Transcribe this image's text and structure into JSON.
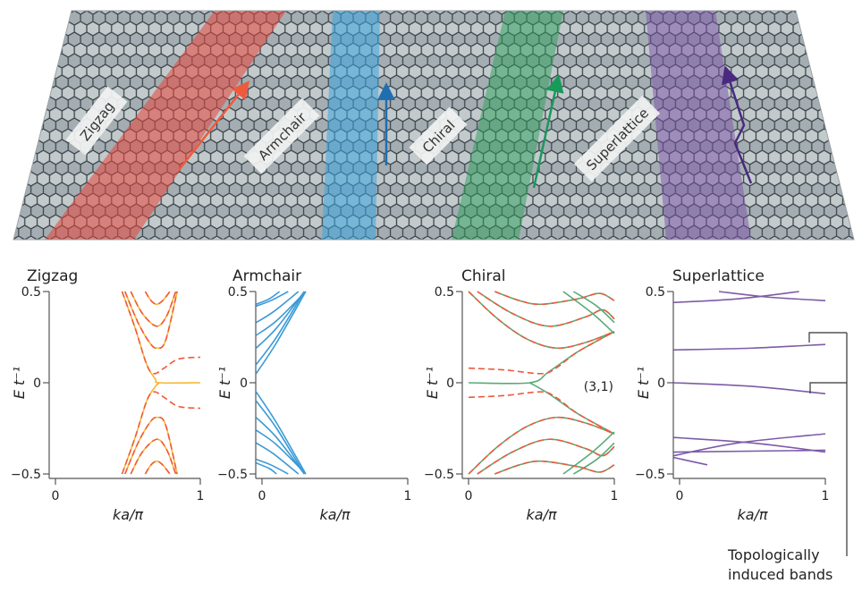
{
  "diagram": {
    "labels": [
      "Zigzag",
      "Armchair",
      "Chiral",
      "Superlattice"
    ],
    "colors": {
      "zigzag": "#e8463a",
      "armchair": "#3aa6e0",
      "chiral": "#2aa05a",
      "superlattice": "#7a4fa8"
    }
  },
  "annotation": {
    "line1": "Topologically",
    "line2": "induced bands"
  },
  "chart_data": [
    {
      "type": "line",
      "title": "Zigzag",
      "xlabel": "ka/π",
      "ylabel": "E t⁻¹",
      "xlim": [
        0,
        1
      ],
      "ylim": [
        -0.5,
        0.5
      ],
      "xticks": [
        "0",
        "1"
      ],
      "yticks": [
        "0.5",
        "0",
        "−0.5"
      ],
      "colors": {
        "solid": "#f7b733",
        "dashed": "#ef5a3c"
      },
      "solid": [
        [
          [
            0.62,
            0.5
          ],
          [
            0.66,
            0.45
          ],
          [
            0.7,
            0.43
          ],
          [
            0.74,
            0.45
          ],
          [
            0.79,
            0.5
          ]
        ],
        [
          [
            0.52,
            0.5
          ],
          [
            0.6,
            0.38
          ],
          [
            0.7,
            0.31
          ],
          [
            0.77,
            0.37
          ],
          [
            0.83,
            0.5
          ]
        ],
        [
          [
            0.48,
            0.5
          ],
          [
            0.57,
            0.33
          ],
          [
            0.65,
            0.22
          ],
          [
            0.7,
            0.19
          ],
          [
            0.76,
            0.23
          ],
          [
            0.84,
            0.5
          ]
        ],
        [
          [
            0.46,
            0.5
          ],
          [
            0.55,
            0.3
          ],
          [
            0.63,
            0.1
          ],
          [
            0.69,
            0.02
          ],
          [
            0.72,
            0
          ],
          [
            1,
            0
          ]
        ],
        [
          [
            0.62,
            -0.5
          ],
          [
            0.66,
            -0.45
          ],
          [
            0.7,
            -0.43
          ],
          [
            0.74,
            -0.45
          ],
          [
            0.79,
            -0.5
          ]
        ],
        [
          [
            0.52,
            -0.5
          ],
          [
            0.6,
            -0.38
          ],
          [
            0.7,
            -0.31
          ],
          [
            0.77,
            -0.37
          ],
          [
            0.83,
            -0.5
          ]
        ],
        [
          [
            0.48,
            -0.5
          ],
          [
            0.57,
            -0.33
          ],
          [
            0.65,
            -0.22
          ],
          [
            0.7,
            -0.19
          ],
          [
            0.76,
            -0.23
          ],
          [
            0.84,
            -0.5
          ]
        ],
        [
          [
            0.46,
            -0.5
          ],
          [
            0.55,
            -0.3
          ],
          [
            0.63,
            -0.1
          ],
          [
            0.69,
            -0.02
          ],
          [
            0.72,
            0
          ]
        ]
      ],
      "dashed": [
        [
          [
            0.62,
            0.5
          ],
          [
            0.66,
            0.45
          ],
          [
            0.7,
            0.43
          ],
          [
            0.74,
            0.45
          ],
          [
            0.79,
            0.5
          ]
        ],
        [
          [
            0.52,
            0.5
          ],
          [
            0.6,
            0.38
          ],
          [
            0.7,
            0.31
          ],
          [
            0.77,
            0.37
          ],
          [
            0.83,
            0.5
          ]
        ],
        [
          [
            0.48,
            0.5
          ],
          [
            0.57,
            0.33
          ],
          [
            0.65,
            0.22
          ],
          [
            0.7,
            0.19
          ],
          [
            0.76,
            0.23
          ],
          [
            0.84,
            0.5
          ]
        ],
        [
          [
            0.46,
            0.5
          ],
          [
            0.55,
            0.3
          ],
          [
            0.63,
            0.1
          ],
          [
            0.68,
            0.05
          ],
          [
            0.75,
            0.08
          ],
          [
            0.85,
            0.13
          ],
          [
            1,
            0.14
          ]
        ],
        [
          [
            0.62,
            -0.5
          ],
          [
            0.66,
            -0.45
          ],
          [
            0.7,
            -0.43
          ],
          [
            0.74,
            -0.45
          ],
          [
            0.79,
            -0.5
          ]
        ],
        [
          [
            0.52,
            -0.5
          ],
          [
            0.6,
            -0.38
          ],
          [
            0.7,
            -0.31
          ],
          [
            0.77,
            -0.37
          ],
          [
            0.83,
            -0.5
          ]
        ],
        [
          [
            0.48,
            -0.5
          ],
          [
            0.57,
            -0.33
          ],
          [
            0.65,
            -0.22
          ],
          [
            0.7,
            -0.19
          ],
          [
            0.76,
            -0.23
          ],
          [
            0.84,
            -0.5
          ]
        ],
        [
          [
            0.46,
            -0.5
          ],
          [
            0.55,
            -0.3
          ],
          [
            0.63,
            -0.1
          ],
          [
            0.68,
            -0.05
          ],
          [
            0.75,
            -0.08
          ],
          [
            0.85,
            -0.13
          ],
          [
            1,
            -0.14
          ]
        ]
      ]
    },
    {
      "type": "line",
      "title": "Armchair",
      "xlabel": "ka/π",
      "ylabel": "E t⁻¹",
      "xlim": [
        0,
        1
      ],
      "ylim": [
        -0.5,
        0.5
      ],
      "xticks": [
        "0",
        "1"
      ],
      "yticks": [
        "0.5",
        "0",
        "−0.5"
      ],
      "colors": {
        "solid": "#3a9ad6"
      },
      "solid": [
        [
          [
            -0.04,
            0.05
          ],
          [
            0.1,
            0.22
          ],
          [
            0.3,
            0.5
          ]
        ],
        [
          [
            -0.04,
            0.1
          ],
          [
            0.1,
            0.25
          ],
          [
            0.29,
            0.5
          ]
        ],
        [
          [
            -0.04,
            0.19
          ],
          [
            0.1,
            0.3
          ],
          [
            0.29,
            0.5
          ]
        ],
        [
          [
            -0.04,
            0.26
          ],
          [
            0.1,
            0.34
          ],
          [
            0.3,
            0.5
          ]
        ],
        [
          [
            -0.04,
            0.33
          ],
          [
            0.08,
            0.39
          ],
          [
            0.25,
            0.5
          ]
        ],
        [
          [
            -0.04,
            0.42
          ],
          [
            0.06,
            0.45
          ],
          [
            0.18,
            0.5
          ]
        ],
        [
          [
            -0.04,
            0.43
          ],
          [
            0.05,
            0.46
          ],
          [
            0.12,
            0.5
          ]
        ],
        [
          [
            -0.04,
            -0.05
          ],
          [
            0.1,
            -0.22
          ],
          [
            0.3,
            -0.5
          ]
        ],
        [
          [
            -0.04,
            -0.1
          ],
          [
            0.1,
            -0.25
          ],
          [
            0.29,
            -0.5
          ]
        ],
        [
          [
            -0.04,
            -0.19
          ],
          [
            0.1,
            -0.3
          ],
          [
            0.29,
            -0.5
          ]
        ],
        [
          [
            -0.04,
            -0.26
          ],
          [
            0.1,
            -0.34
          ],
          [
            0.3,
            -0.5
          ]
        ],
        [
          [
            -0.04,
            -0.33
          ],
          [
            0.08,
            -0.39
          ],
          [
            0.25,
            -0.5
          ]
        ],
        [
          [
            -0.04,
            -0.42
          ],
          [
            0.06,
            -0.45
          ],
          [
            0.18,
            -0.5
          ]
        ],
        [
          [
            -0.04,
            -0.44
          ],
          [
            0.05,
            -0.47
          ],
          [
            0.1,
            -0.5
          ]
        ]
      ],
      "dashed": []
    },
    {
      "type": "line",
      "title": "Chiral",
      "xlabel": "ka/π",
      "ylabel": "E t⁻¹",
      "xlim": [
        0,
        1
      ],
      "ylim": [
        -0.5,
        0.5
      ],
      "xticks": [
        "0",
        "1"
      ],
      "yticks": [
        "0.5",
        "0",
        "−0.5"
      ],
      "annotation": "(3,1)",
      "colors": {
        "solid": "#5aaa78",
        "dashed": "#ef5a3c"
      },
      "solid": [
        [
          [
            0,
            0.5
          ],
          [
            0.2,
            0.35
          ],
          [
            0.4,
            0.24
          ],
          [
            0.6,
            0.19
          ],
          [
            0.8,
            0.22
          ],
          [
            1,
            0.28
          ]
        ],
        [
          [
            0.06,
            0.5
          ],
          [
            0.3,
            0.38
          ],
          [
            0.55,
            0.31
          ],
          [
            0.8,
            0.36
          ],
          [
            0.92,
            0.4
          ],
          [
            1,
            0.35
          ]
        ],
        [
          [
            0.18,
            0.5
          ],
          [
            0.35,
            0.45
          ],
          [
            0.5,
            0.43
          ],
          [
            0.75,
            0.46
          ],
          [
            0.9,
            0.49
          ],
          [
            1,
            0.45
          ]
        ],
        [
          [
            0.65,
            0.5
          ],
          [
            0.85,
            0.38
          ],
          [
            1,
            0.27
          ]
        ],
        [
          [
            0.72,
            0.5
          ],
          [
            0.88,
            0.42
          ],
          [
            1,
            0.33
          ]
        ],
        [
          [
            0,
            0
          ],
          [
            0.42,
            0
          ],
          [
            0.55,
            0.06
          ],
          [
            0.75,
            0.17
          ],
          [
            1,
            0.28
          ]
        ],
        [
          [
            0,
            -0.5
          ],
          [
            0.2,
            -0.35
          ],
          [
            0.4,
            -0.24
          ],
          [
            0.6,
            -0.19
          ],
          [
            0.8,
            -0.22
          ],
          [
            1,
            -0.28
          ]
        ],
        [
          [
            0.06,
            -0.5
          ],
          [
            0.3,
            -0.38
          ],
          [
            0.55,
            -0.31
          ],
          [
            0.8,
            -0.36
          ],
          [
            0.92,
            -0.4
          ],
          [
            1,
            -0.35
          ]
        ],
        [
          [
            0.18,
            -0.5
          ],
          [
            0.35,
            -0.45
          ],
          [
            0.5,
            -0.43
          ],
          [
            0.75,
            -0.46
          ],
          [
            0.9,
            -0.49
          ],
          [
            1,
            -0.45
          ]
        ],
        [
          [
            0.65,
            -0.5
          ],
          [
            0.85,
            -0.38
          ],
          [
            1,
            -0.27
          ]
        ],
        [
          [
            0.72,
            -0.5
          ],
          [
            0.88,
            -0.42
          ],
          [
            1,
            -0.33
          ]
        ],
        [
          [
            0.42,
            0
          ],
          [
            0.55,
            -0.06
          ],
          [
            0.75,
            -0.17
          ],
          [
            1,
            -0.28
          ]
        ]
      ],
      "dashed": [
        [
          [
            0,
            0.5
          ],
          [
            0.2,
            0.35
          ],
          [
            0.4,
            0.24
          ],
          [
            0.6,
            0.19
          ],
          [
            0.8,
            0.22
          ],
          [
            1,
            0.28
          ]
        ],
        [
          [
            0.06,
            0.5
          ],
          [
            0.3,
            0.38
          ],
          [
            0.55,
            0.31
          ],
          [
            0.8,
            0.36
          ],
          [
            0.92,
            0.4
          ],
          [
            1,
            0.35
          ]
        ],
        [
          [
            0.18,
            0.5
          ],
          [
            0.35,
            0.45
          ],
          [
            0.5,
            0.43
          ],
          [
            0.75,
            0.46
          ],
          [
            0.9,
            0.49
          ],
          [
            1,
            0.45
          ]
        ],
        [
          [
            0,
            0.08
          ],
          [
            0.25,
            0.07
          ],
          [
            0.5,
            0.05
          ],
          [
            0.6,
            0.08
          ],
          [
            0.75,
            0.17
          ],
          [
            1,
            0.28
          ]
        ],
        [
          [
            0,
            -0.5
          ],
          [
            0.2,
            -0.35
          ],
          [
            0.4,
            -0.24
          ],
          [
            0.6,
            -0.19
          ],
          [
            0.8,
            -0.22
          ],
          [
            1,
            -0.28
          ]
        ],
        [
          [
            0.06,
            -0.5
          ],
          [
            0.3,
            -0.38
          ],
          [
            0.55,
            -0.31
          ],
          [
            0.8,
            -0.36
          ],
          [
            0.92,
            -0.4
          ],
          [
            1,
            -0.35
          ]
        ],
        [
          [
            0.18,
            -0.5
          ],
          [
            0.35,
            -0.45
          ],
          [
            0.5,
            -0.43
          ],
          [
            0.75,
            -0.46
          ],
          [
            0.9,
            -0.49
          ],
          [
            1,
            -0.45
          ]
        ],
        [
          [
            0,
            -0.08
          ],
          [
            0.25,
            -0.07
          ],
          [
            0.5,
            -0.05
          ],
          [
            0.6,
            -0.08
          ],
          [
            0.75,
            -0.17
          ],
          [
            1,
            -0.28
          ]
        ]
      ]
    },
    {
      "type": "line",
      "title": "Superlattice",
      "xlabel": "ka/π",
      "ylabel": "E t⁻¹",
      "xlim": [
        0,
        1
      ],
      "ylim": [
        -0.5,
        0.5
      ],
      "xticks": [
        "0",
        "1"
      ],
      "yticks": [
        "0.5",
        "0",
        "−0.5"
      ],
      "colors": {
        "solid": "#7d5ba6"
      },
      "solid": [
        [
          [
            -0.04,
            0.44
          ],
          [
            0.4,
            0.46
          ],
          [
            0.82,
            0.5
          ]
        ],
        [
          [
            0.27,
            0.5
          ],
          [
            0.6,
            0.47
          ],
          [
            1,
            0.45
          ]
        ],
        [
          [
            -0.04,
            0.18
          ],
          [
            0.5,
            0.19
          ],
          [
            1,
            0.21
          ]
        ],
        [
          [
            -0.04,
            0
          ],
          [
            0.5,
            -0.02
          ],
          [
            1,
            -0.06
          ]
        ],
        [
          [
            -0.04,
            -0.3
          ],
          [
            0.5,
            -0.33
          ],
          [
            1,
            -0.38
          ]
        ],
        [
          [
            -0.04,
            -0.4
          ],
          [
            0.4,
            -0.33
          ],
          [
            1,
            -0.28
          ]
        ],
        [
          [
            -0.04,
            -0.38
          ],
          [
            1,
            -0.37
          ]
        ],
        [
          [
            -0.04,
            -0.41
          ],
          [
            0.19,
            -0.45
          ]
        ]
      ],
      "dashed": []
    }
  ]
}
